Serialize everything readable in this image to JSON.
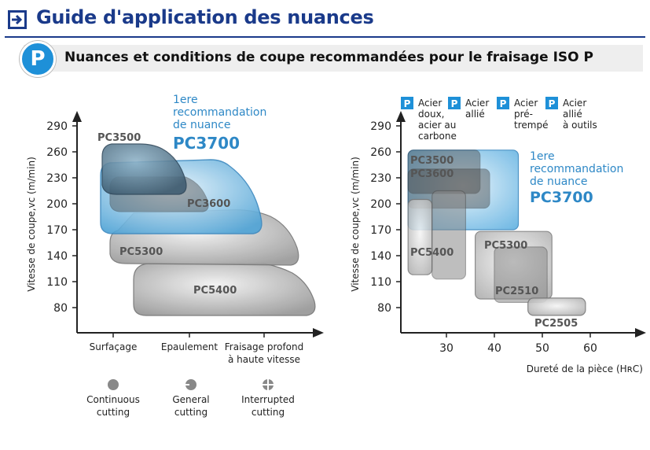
{
  "header": {
    "title": "Guide d'application des nuances"
  },
  "subheader": {
    "badge": "P",
    "title": "Nuances et conditions de coupe recommandées pour le fraisage ISO P"
  },
  "chart_data": [
    {
      "type": "area",
      "ylabel": "Vitesse de coupe,vc (m/min)",
      "yticks": [
        290,
        260,
        230,
        200,
        170,
        140,
        110,
        80
      ],
      "xcategories": [
        {
          "lines": [
            "Surfaçage"
          ]
        },
        {
          "lines": [
            "Epaulement"
          ]
        },
        {
          "lines": [
            "Fraisage profond",
            "à haute vitesse"
          ]
        }
      ],
      "recommendation": {
        "lines": [
          "1ere",
          "recommandation",
          "de nuance"
        ],
        "grade": "PC3700"
      },
      "regions": [
        {
          "name": "PC5400",
          "label": "PC5400"
        },
        {
          "name": "PC5300",
          "label": "PC5300"
        },
        {
          "name": "PC3700",
          "label": ""
        },
        {
          "name": "PC3600",
          "label": "PC3600"
        },
        {
          "name": "PC3500",
          "label": "PC3500"
        }
      ],
      "legend": [
        {
          "icon": "continuous-cutting-icon",
          "lines": [
            "Continuous",
            "cutting"
          ]
        },
        {
          "icon": "general-cutting-icon",
          "lines": [
            "General",
            "cutting"
          ]
        },
        {
          "icon": "interrupted-cutting-icon",
          "lines": [
            "Interrupted",
            "cutting"
          ]
        }
      ]
    },
    {
      "type": "area",
      "ylabel": "Vitesse de coupe,vc (m/min)",
      "xlabel": "Dureté de la pièce (HʀC)",
      "yticks": [
        290,
        260,
        230,
        200,
        170,
        140,
        110,
        80
      ],
      "xticks": [
        30,
        40,
        50,
        60
      ],
      "recommendation": {
        "lines": [
          "1ere",
          "recommandation",
          "de nuance"
        ],
        "grade": "PC3700"
      },
      "materials": [
        {
          "badge": "P",
          "lines": [
            "Acier",
            "doux,",
            "acier au",
            "carbone"
          ]
        },
        {
          "badge": "P",
          "lines": [
            "Acier",
            "allié"
          ]
        },
        {
          "badge": "P",
          "lines": [
            "Acier",
            "pré-",
            "trempé"
          ]
        },
        {
          "badge": "P",
          "lines": [
            "Acier",
            "allié",
            "à outils"
          ]
        }
      ],
      "regions": [
        {
          "name": "PC3700",
          "label": "",
          "hrc": [
            22,
            45
          ],
          "vc": [
            170,
            262
          ]
        },
        {
          "name": "PC3500",
          "label": "PC3500",
          "hrc": [
            22,
            37
          ],
          "vc": [
            212,
            262
          ]
        },
        {
          "name": "PC3600",
          "label": "PC3600",
          "hrc": [
            22,
            39
          ],
          "vc": [
            195,
            240
          ]
        },
        {
          "name": "PC5400",
          "label": "PC5400",
          "hrc": [
            22,
            27
          ],
          "vc": [
            118,
            205
          ]
        },
        {
          "name": "PC5300",
          "label": "PC5300",
          "hrc": [
            27,
            34
          ],
          "vc": [
            113,
            215
          ]
        },
        {
          "name": "PC5300b",
          "label": "PC5300",
          "hrc": [
            36,
            52
          ],
          "vc": [
            90,
            168
          ]
        },
        {
          "name": "PC2510",
          "label": "PC2510",
          "hrc": [
            40,
            51
          ],
          "vc": [
            86,
            150
          ]
        },
        {
          "name": "PC2505",
          "label": "PC2505",
          "hrc": [
            47,
            59
          ],
          "vc": [
            71,
            91
          ]
        }
      ]
    }
  ]
}
